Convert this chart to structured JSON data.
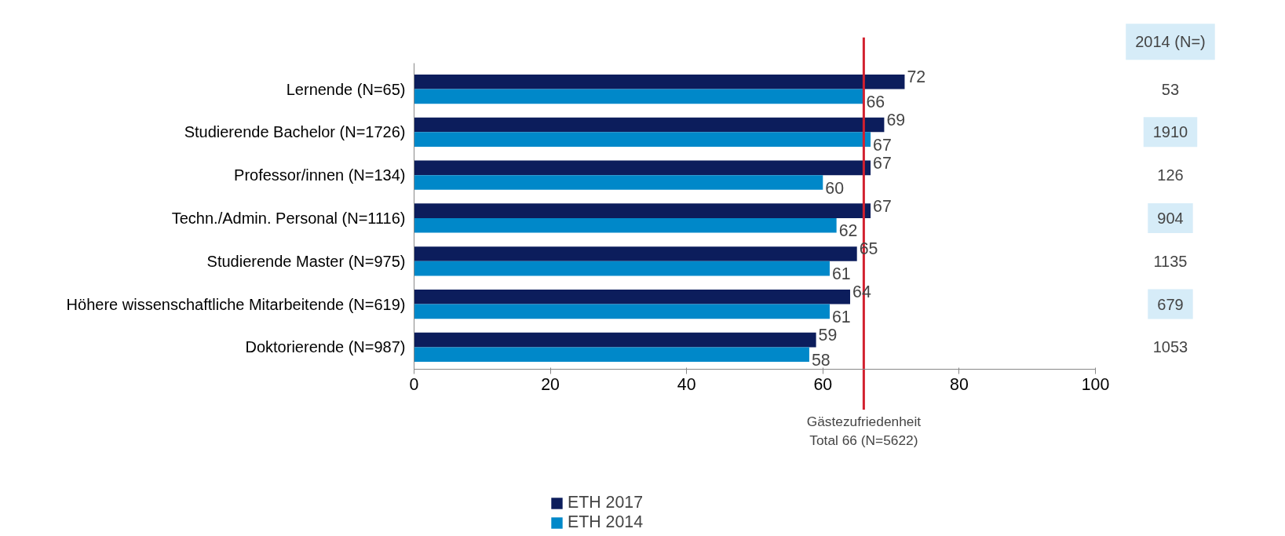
{
  "chart_data": {
    "type": "bar",
    "orientation": "horizontal",
    "categories": [
      "Lernende (N=65)",
      "Studierende Bachelor (N=1726)",
      "Professor/innen (N=134)",
      "Techn./Admin. Personal (N=1116)",
      "Studierende Master (N=975)",
      "Höhere wissenschaftliche Mitarbeitende (N=619)",
      "Doktorierende (N=987)"
    ],
    "series": [
      {
        "name": "ETH 2017",
        "color": "#0c1d5c",
        "values": [
          72,
          69,
          67,
          67,
          65,
          64,
          59
        ]
      },
      {
        "name": "ETH 2014",
        "color": "#0088c9",
        "values": [
          66,
          67,
          60,
          62,
          61,
          61,
          58
        ]
      }
    ],
    "xlim": [
      0,
      100
    ],
    "xticks": [
      0,
      20,
      40,
      60,
      80,
      100
    ],
    "grid": false,
    "legend": "bottom",
    "data_labels": true,
    "ref_lines": [
      {
        "axis": "x",
        "value": 66,
        "label": "Gästezufriedenheit\nTotal 66 (N=5622)",
        "color": "#d2202f"
      }
    ],
    "annotations": [
      "2014 (N=)",
      "53",
      "1910",
      "126",
      "904",
      "1135",
      "679",
      "1053"
    ]
  }
}
